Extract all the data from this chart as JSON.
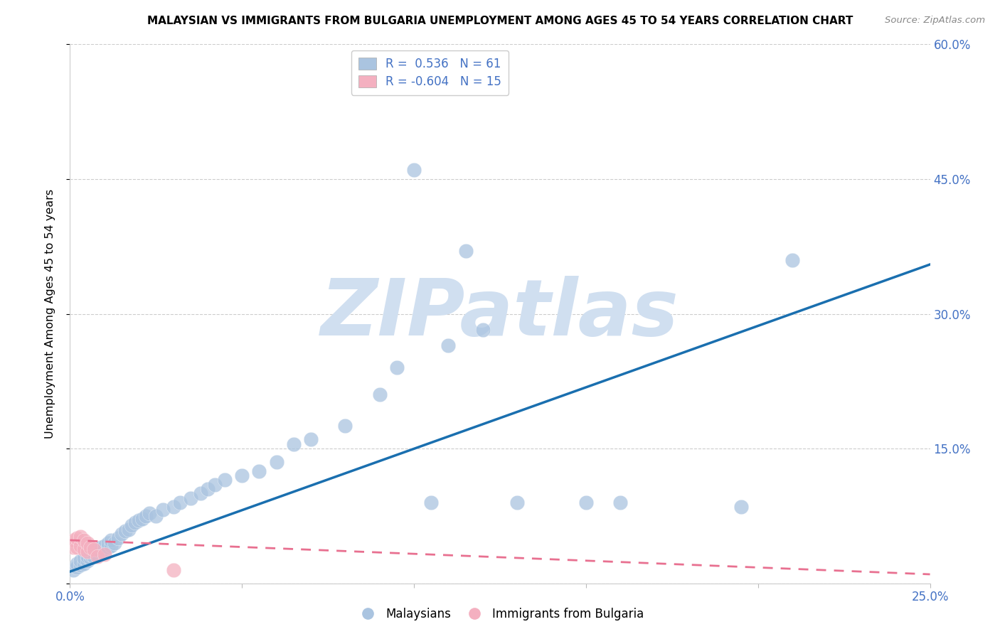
{
  "title": "MALAYSIAN VS IMMIGRANTS FROM BULGARIA UNEMPLOYMENT AMONG AGES 45 TO 54 YEARS CORRELATION CHART",
  "source": "Source: ZipAtlas.com",
  "ylabel": "Unemployment Among Ages 45 to 54 years",
  "xlim": [
    0.0,
    0.25
  ],
  "ylim": [
    0.0,
    0.6
  ],
  "xticks": [
    0.0,
    0.05,
    0.1,
    0.15,
    0.2,
    0.25
  ],
  "yticks": [
    0.0,
    0.15,
    0.3,
    0.45,
    0.6
  ],
  "ytick_right_labels": [
    "",
    "15.0%",
    "30.0%",
    "45.0%",
    "60.0%"
  ],
  "xtick_labels": [
    "0.0%",
    "",
    "",
    "",
    "",
    "25.0%"
  ],
  "blue_R": 0.536,
  "blue_N": 61,
  "pink_R": -0.604,
  "pink_N": 15,
  "blue_color": "#aac4e0",
  "pink_color": "#f4b0c0",
  "blue_line_color": "#1a6faf",
  "pink_line_color": "#e87090",
  "watermark": "ZIPatlas",
  "watermark_color": "#d0dff0",
  "legend_label_blue": "Malaysians",
  "legend_label_pink": "Immigrants from Bulgaria",
  "blue_x": [
    0.001,
    0.002,
    0.002,
    0.003,
    0.003,
    0.004,
    0.004,
    0.005,
    0.005,
    0.006,
    0.006,
    0.007,
    0.007,
    0.008,
    0.008,
    0.009,
    0.009,
    0.01,
    0.01,
    0.011,
    0.011,
    0.012,
    0.012,
    0.013,
    0.014,
    0.015,
    0.016,
    0.017,
    0.018,
    0.019,
    0.02,
    0.021,
    0.022,
    0.023,
    0.025,
    0.027,
    0.03,
    0.032,
    0.035,
    0.038,
    0.04,
    0.042,
    0.045,
    0.05,
    0.055,
    0.06,
    0.065,
    0.07,
    0.08,
    0.09,
    0.095,
    0.1,
    0.105,
    0.11,
    0.115,
    0.12,
    0.13,
    0.15,
    0.16,
    0.195,
    0.21
  ],
  "blue_y": [
    0.015,
    0.018,
    0.022,
    0.02,
    0.025,
    0.022,
    0.028,
    0.025,
    0.03,
    0.028,
    0.032,
    0.03,
    0.035,
    0.032,
    0.038,
    0.035,
    0.04,
    0.038,
    0.042,
    0.04,
    0.045,
    0.042,
    0.048,
    0.045,
    0.05,
    0.055,
    0.058,
    0.06,
    0.065,
    0.068,
    0.07,
    0.072,
    0.075,
    0.078,
    0.075,
    0.082,
    0.085,
    0.09,
    0.095,
    0.1,
    0.105,
    0.11,
    0.115,
    0.12,
    0.125,
    0.135,
    0.155,
    0.16,
    0.175,
    0.21,
    0.24,
    0.46,
    0.09,
    0.265,
    0.37,
    0.282,
    0.09,
    0.09,
    0.09,
    0.085,
    0.36
  ],
  "pink_x": [
    0.001,
    0.001,
    0.002,
    0.002,
    0.003,
    0.003,
    0.004,
    0.004,
    0.005,
    0.005,
    0.006,
    0.007,
    0.008,
    0.01,
    0.03
  ],
  "pink_y": [
    0.04,
    0.048,
    0.04,
    0.05,
    0.042,
    0.052,
    0.038,
    0.048,
    0.035,
    0.045,
    0.04,
    0.038,
    0.03,
    0.032,
    0.015
  ],
  "blue_line_x": [
    0.0,
    0.25
  ],
  "blue_line_y": [
    0.013,
    0.355
  ],
  "pink_line_x": [
    0.0,
    0.25
  ],
  "pink_line_y": [
    0.048,
    0.01
  ]
}
